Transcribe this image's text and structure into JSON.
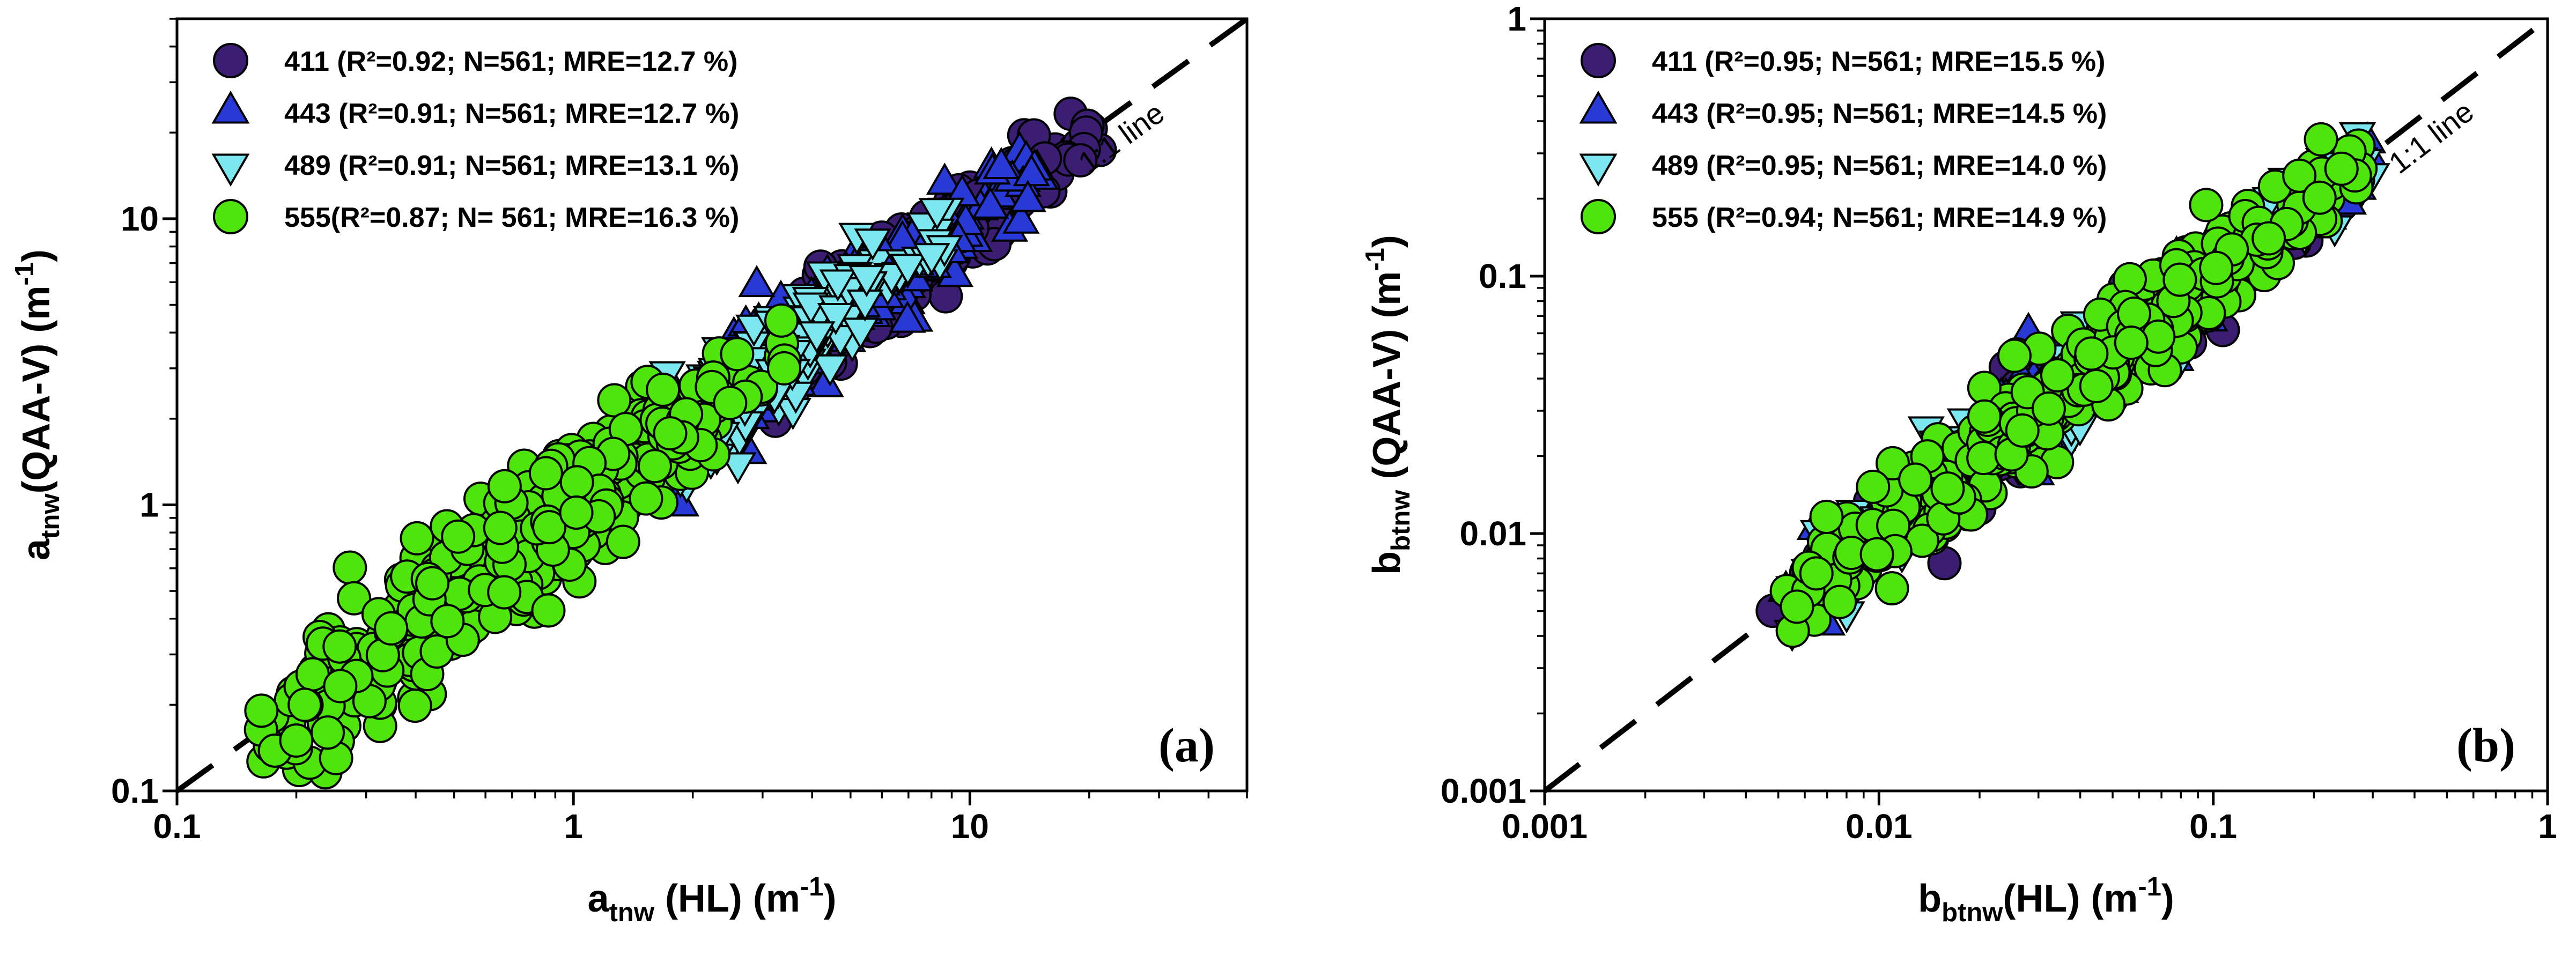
{
  "figure": {
    "background": "#ffffff"
  },
  "chart_data": [
    {
      "type": "scatter",
      "panel": "a",
      "corner_label": "(a)",
      "scale": "log-log",
      "grid": false,
      "legend_position": "top-left-inside",
      "x_axis": {
        "range": [
          0.1,
          50
        ],
        "title_segments": [
          [
            "a",
            "base"
          ],
          [
            "tnw",
            "sub"
          ],
          [
            " (HL) (m",
            "base"
          ],
          [
            "-1",
            "sup"
          ],
          [
            ")",
            "base"
          ]
        ],
        "major_ticks": [
          {
            "value": 0.1,
            "label": "0.1"
          },
          {
            "value": 1,
            "label": "1"
          },
          {
            "value": 10,
            "label": "10"
          }
        ]
      },
      "y_axis": {
        "range": [
          0.1,
          50
        ],
        "title_segments": [
          [
            "a",
            "base"
          ],
          [
            "tnw",
            "sub"
          ],
          [
            "(QAA-V) (m",
            "base"
          ],
          [
            "-1",
            "sup"
          ],
          [
            ")",
            "base"
          ]
        ],
        "major_ticks": [
          {
            "value": 0.1,
            "label": "0.1"
          },
          {
            "value": 1,
            "label": "1"
          },
          {
            "value": 10,
            "label": "10"
          }
        ]
      },
      "reference_line": {
        "label": "1:1 line",
        "from": [
          0.1,
          0.1
        ],
        "to": [
          50,
          50
        ],
        "style": "dashed",
        "color": "#000000"
      },
      "series": [
        {
          "wavelength_nm": 411,
          "legend_label": "411 (R²=0.92; N=561; MRE=12.7 %)",
          "r2": 0.92,
          "n": 561,
          "mre_pct": 12.7,
          "marker": "circle",
          "fill": "#3b1d72",
          "edge": "#000000",
          "cloud": {
            "count": 205,
            "log10_min": 0.45,
            "log10_max": 1.34,
            "sigma_log10": 0.065,
            "tail": 0.3,
            "seed": 104
          },
          "extra_points": [
            [
              4.2,
              6.8
            ],
            [
              19,
              16
            ],
            [
              3.6,
              4.4
            ]
          ]
        },
        {
          "wavelength_nm": 443,
          "legend_label": "443 (R²=0.91; N=561; MRE=12.7 %)",
          "r2": 0.91,
          "n": 561,
          "mre_pct": 12.7,
          "marker": "triangle-up",
          "fill": "#2839d6",
          "edge": "#000000",
          "cloud": {
            "count": 215,
            "log10_min": 0.16,
            "log10_max": 1.18,
            "sigma_log10": 0.07,
            "tail": 0.35,
            "seed": 103
          },
          "extra_points": [
            [
              2.9,
              5.8
            ],
            [
              12,
              15
            ],
            [
              14,
              11.5
            ]
          ]
        },
        {
          "wavelength_nm": 489,
          "legend_label": "489 (R²=0.91; N=561; MRE=13.1 %)",
          "r2": 0.91,
          "n": 561,
          "mre_pct": 13.1,
          "marker": "triangle-down",
          "fill": "#7de7f0",
          "edge": "#000000",
          "cloud": {
            "count": 245,
            "log10_min": -0.05,
            "log10_max": 0.98,
            "sigma_log10": 0.075,
            "tail": 0.4,
            "seed": 102
          },
          "extra_points": [
            [
              2.6,
              1.4
            ],
            [
              2.3,
              1.5
            ]
          ]
        },
        {
          "wavelength_nm": 555,
          "legend_label": "555(R²=0.87; N= 561; MRE=16.3 %)",
          "r2": 0.87,
          "n": 561,
          "mre_pct": 16.3,
          "marker": "circle",
          "fill": "#4ee40c",
          "edge": "#000000",
          "cloud": {
            "count": 430,
            "log10_min": -0.8,
            "log10_max": 0.56,
            "sigma_log10": 0.085,
            "tail": 0.8,
            "seed": 101
          },
          "extra_points": [
            [
              0.2,
              0.15
            ],
            [
              0.24,
              0.16
            ],
            [
              0.21,
              0.2
            ],
            [
              3.4,
              3.0
            ]
          ]
        }
      ]
    },
    {
      "type": "scatter",
      "panel": "b",
      "corner_label": "(b)",
      "scale": "log-log",
      "grid": false,
      "legend_position": "top-left-inside",
      "x_axis": {
        "range": [
          0.001,
          1
        ],
        "title_segments": [
          [
            "b",
            "base"
          ],
          [
            "btnw",
            "sub"
          ],
          [
            "(HL) (m",
            "base"
          ],
          [
            "-1",
            "sup"
          ],
          [
            ")",
            "base"
          ]
        ],
        "major_ticks": [
          {
            "value": 0.001,
            "label": "0.001"
          },
          {
            "value": 0.01,
            "label": "0.01"
          },
          {
            "value": 0.1,
            "label": "0.1"
          },
          {
            "value": 1,
            "label": "1"
          }
        ]
      },
      "y_axis": {
        "range": [
          0.001,
          1
        ],
        "title_segments": [
          [
            "b",
            "base"
          ],
          [
            "btnw",
            "sub"
          ],
          [
            " (QAA-V) (m",
            "base"
          ],
          [
            "-1",
            "sup"
          ],
          [
            ")",
            "base"
          ]
        ],
        "major_ticks": [
          {
            "value": 0.001,
            "label": "0.001"
          },
          {
            "value": 0.01,
            "label": "0.01"
          },
          {
            "value": 0.1,
            "label": "0.1"
          },
          {
            "value": 1,
            "label": "1"
          }
        ]
      },
      "reference_line": {
        "label": "1:1 line",
        "from": [
          0.001,
          0.001
        ],
        "to": [
          1,
          1
        ],
        "style": "dashed",
        "color": "#000000"
      },
      "series": [
        {
          "wavelength_nm": 411,
          "legend_label": "411 (R²=0.95; N=561; MRE=15.5 %)",
          "r2": 0.95,
          "n": 561,
          "mre_pct": 15.5,
          "marker": "circle",
          "fill": "#3b1d72",
          "edge": "#000000",
          "cloud": {
            "count": 255,
            "log10_min": -2.32,
            "log10_max": -0.54,
            "sigma_log10": 0.07,
            "tail": 0.3,
            "seed": 201
          },
          "extra_points": [
            [
              0.26,
              0.28
            ]
          ]
        },
        {
          "wavelength_nm": 443,
          "legend_label": "443 (R²=0.95; N=561; MRE=14.5 %)",
          "r2": 0.95,
          "n": 561,
          "mre_pct": 14.5,
          "marker": "triangle-up",
          "fill": "#2839d6",
          "edge": "#000000",
          "cloud": {
            "count": 255,
            "log10_min": -2.33,
            "log10_max": -0.53,
            "sigma_log10": 0.07,
            "tail": 0.3,
            "seed": 202
          },
          "extra_points": [
            [
              0.028,
              0.06
            ],
            [
              0.29,
              0.33
            ]
          ]
        },
        {
          "wavelength_nm": 489,
          "legend_label": "489 (R²=0.95; N=561; MRE=14.0 %)",
          "r2": 0.95,
          "n": 561,
          "mre_pct": 14.0,
          "marker": "triangle-down",
          "fill": "#7de7f0",
          "edge": "#000000",
          "cloud": {
            "count": 255,
            "log10_min": -2.36,
            "log10_max": -0.52,
            "sigma_log10": 0.07,
            "tail": 0.35,
            "seed": 203
          },
          "extra_points": [
            [
              0.0055,
              0.0042
            ],
            [
              0.27,
              0.36
            ],
            [
              0.0062,
              0.0066
            ]
          ]
        },
        {
          "wavelength_nm": 555,
          "legend_label": "555 (R²=0.94; N=561; MRE=14.9 %)",
          "r2": 0.94,
          "n": 561,
          "mre_pct": 14.9,
          "marker": "circle",
          "fill": "#4ee40c",
          "edge": "#000000",
          "cloud": {
            "count": 430,
            "log10_min": -2.3,
            "log10_max": -0.54,
            "sigma_log10": 0.075,
            "tail": 0.5,
            "seed": 204
          },
          "extra_points": [
            [
              0.21,
              0.34
            ],
            [
              0.0065,
              0.007
            ]
          ]
        }
      ]
    }
  ]
}
